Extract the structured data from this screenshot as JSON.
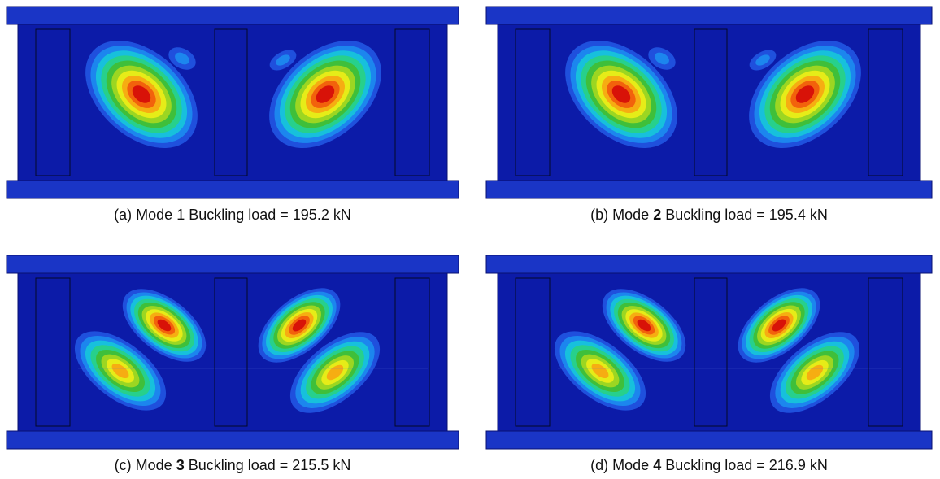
{
  "palette": {
    "background_blue": "#0c1ba8",
    "flange_blue": "#1a35c6",
    "ramp": [
      "#0c1ba8",
      "#1f50dd",
      "#1c86ee",
      "#17c0dc",
      "#27d08c",
      "#3fbf3a",
      "#9cd622",
      "#e6ec18",
      "#f6ad12",
      "#f2620c",
      "#d81208"
    ]
  },
  "panels": [
    {
      "id": "a",
      "caption_prefix": "(a) Mode ",
      "mode": "1",
      "mode_bold": false,
      "caption_suffix": " Buckling load = 195.2 kN",
      "pattern": "single"
    },
    {
      "id": "b",
      "caption_prefix": "(b) Mode ",
      "mode": "2",
      "mode_bold": true,
      "caption_suffix": " Buckling load = 195.4 kN",
      "pattern": "single"
    },
    {
      "id": "c",
      "caption_prefix": "(c) Mode ",
      "mode": "3",
      "mode_bold": true,
      "caption_suffix": " Buckling load = 215.5 kN",
      "pattern": "double"
    },
    {
      "id": "d",
      "caption_prefix": "(d) Mode ",
      "mode": "4",
      "mode_bold": true,
      "caption_suffix": " Buckling load = 216.9 kN",
      "pattern": "double"
    }
  ]
}
